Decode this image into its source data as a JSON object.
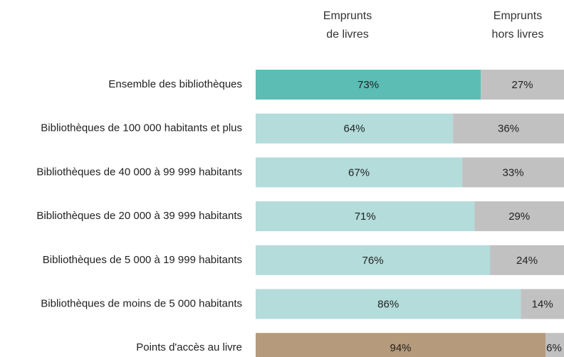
{
  "chart_data": {
    "type": "stacked-bar-horizontal",
    "categories": [
      "Ensemble des bibliothèques",
      "Bibliothèques de 100 000 habitants et plus",
      "Bibliothèques de 40 000 à 99 999 habitants",
      "Bibliothèques de 20 000 à 39 999 habitants",
      "Bibliothèques de 5 000 à 19 999 habitants",
      "Bibliothèques de moins de 5 000 habitants",
      "Points d'accès au livre"
    ],
    "xlim": [
      0,
      100
    ],
    "series": [
      {
        "name": "Emprunts de livres",
        "colors": [
          "#5cbdb4",
          "#b3dcdb",
          "#b3dcdb",
          "#b3dcdb",
          "#b3dcdb",
          "#b3dcdb",
          "#b59b7b"
        ],
        "values": [
          73,
          64,
          67,
          71,
          76,
          86,
          94
        ],
        "value_labels": [
          "73%",
          "64%",
          "67%",
          "71%",
          "76%",
          "86%",
          "94%"
        ]
      },
      {
        "name": "Emprunts hors livres",
        "color": "#c1c1c1",
        "values": [
          27,
          36,
          33,
          29,
          24,
          14,
          6
        ],
        "value_labels": [
          "27%",
          "36%",
          "33%",
          "29%",
          "24%",
          "14%",
          "6%"
        ]
      }
    ]
  }
}
